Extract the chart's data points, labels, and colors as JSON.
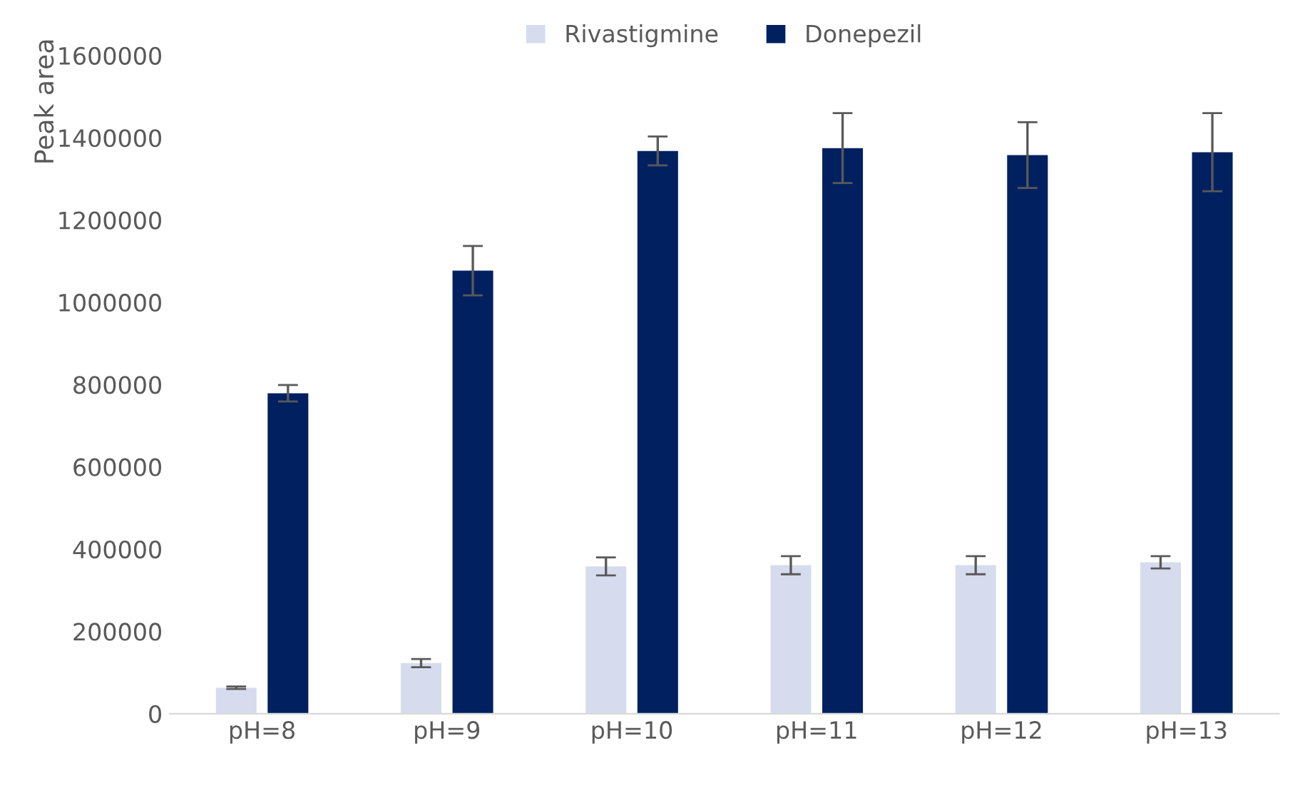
{
  "chart_data": {
    "type": "bar",
    "ylabel": "Peak area",
    "categories": [
      "pH=8",
      "pH=9",
      "pH=10",
      "pH=11",
      "pH=12",
      "pH=13"
    ],
    "series": [
      {
        "name": "Rivastigmine",
        "color": "#d6dcee",
        "values": [
          63000,
          123000,
          358000,
          361000,
          361000,
          368000
        ],
        "errors": [
          3000,
          10000,
          22000,
          22000,
          22000,
          15000
        ]
      },
      {
        "name": "Donepezil",
        "color": "#002060",
        "values": [
          779000,
          1077000,
          1368000,
          1375000,
          1358000,
          1365000
        ],
        "errors": [
          20000,
          60000,
          35000,
          85000,
          80000,
          95000
        ]
      }
    ],
    "ylim": [
      0,
      1600000
    ],
    "yticks": [
      0,
      200000,
      400000,
      600000,
      800000,
      1000000,
      1200000,
      1400000,
      1600000
    ],
    "grid": false,
    "legend": "top"
  }
}
